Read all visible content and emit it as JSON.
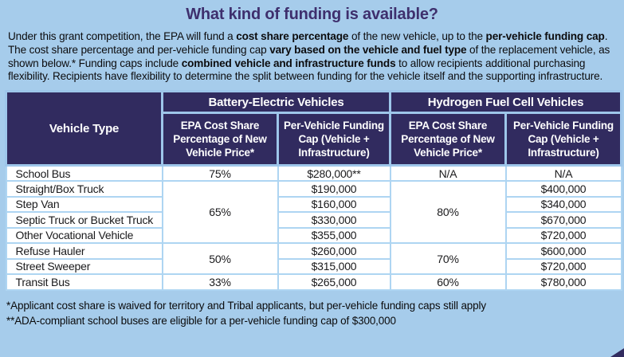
{
  "colors": {
    "background": "#a6cceb",
    "header_bg": "#312b5f",
    "title": "#3e2f6d",
    "header_border": "#9ec6ea",
    "body_border": "#aed5f2"
  },
  "title": "What kind of funding is available?",
  "intro": {
    "segments": [
      {
        "t": "Under this grant competition, the EPA will fund a ",
        "b": false
      },
      {
        "t": "cost share percentage",
        "b": true
      },
      {
        "t": " of the new vehicle, up to the ",
        "b": false
      },
      {
        "t": "per-vehicle funding cap",
        "b": true
      },
      {
        "t": ". The cost share percentage and per-vehicle funding cap ",
        "b": false
      },
      {
        "t": "vary based on the vehicle and fuel type",
        "b": true
      },
      {
        "t": " of the replacement vehicle, as shown below.* Funding caps include ",
        "b": false
      },
      {
        "t": "combined vehicle and infrastructure funds",
        "b": true
      },
      {
        "t": " to allow recipients additional purchasing flexibility. Recipients have flexibility to determine the split between funding for the vehicle itself and the supporting infrastructure.",
        "b": false
      }
    ]
  },
  "table": {
    "vehicle_type_header": "Vehicle Type",
    "groups": [
      "Battery-Electric Vehicles",
      "Hydrogen Fuel Cell Vehicles"
    ],
    "subheaders": [
      "EPA Cost Share Percentage of New Vehicle Price*",
      "Per-Vehicle Funding Cap (Vehicle + Infrastructure)",
      "EPA Cost Share Percentage of New Vehicle Price*",
      "Per-Vehicle Funding Cap (Vehicle + Infrastructure)"
    ],
    "rows": [
      {
        "vehicle": "School Bus",
        "bev_share": "75%",
        "bev_cap": "$280,000**",
        "h2_share": "N/A",
        "h2_cap": "N/A"
      },
      {
        "vehicle": "Straight/Box Truck",
        "bev_share": "65%",
        "bev_cap": "$190,000",
        "h2_share": "80%",
        "h2_cap": "$400,000"
      },
      {
        "vehicle": "Step Van",
        "bev_cap": "$160,000",
        "h2_cap": "$340,000"
      },
      {
        "vehicle": "Septic Truck or Bucket Truck",
        "bev_cap": "$330,000",
        "h2_cap": "$670,000"
      },
      {
        "vehicle": "Other Vocational Vehicle",
        "bev_cap": "$355,000",
        "h2_cap": "$720,000"
      },
      {
        "vehicle": "Refuse Hauler",
        "bev_share": "50%",
        "bev_cap": "$260,000",
        "h2_share": "70%",
        "h2_cap": "$600,000"
      },
      {
        "vehicle": "Street Sweeper",
        "bev_cap": "$315,000",
        "h2_cap": "$720,000"
      },
      {
        "vehicle": "Transit Bus",
        "bev_share": "33%",
        "bev_cap": "$265,000",
        "h2_share": "60%",
        "h2_cap": "$780,000"
      }
    ]
  },
  "footnotes": [
    "*Applicant cost share is waived for territory and Tribal applicants, but per-vehicle funding caps still apply",
    "**ADA-compliant school buses are eligible for a per-vehicle funding cap of $300,000"
  ]
}
